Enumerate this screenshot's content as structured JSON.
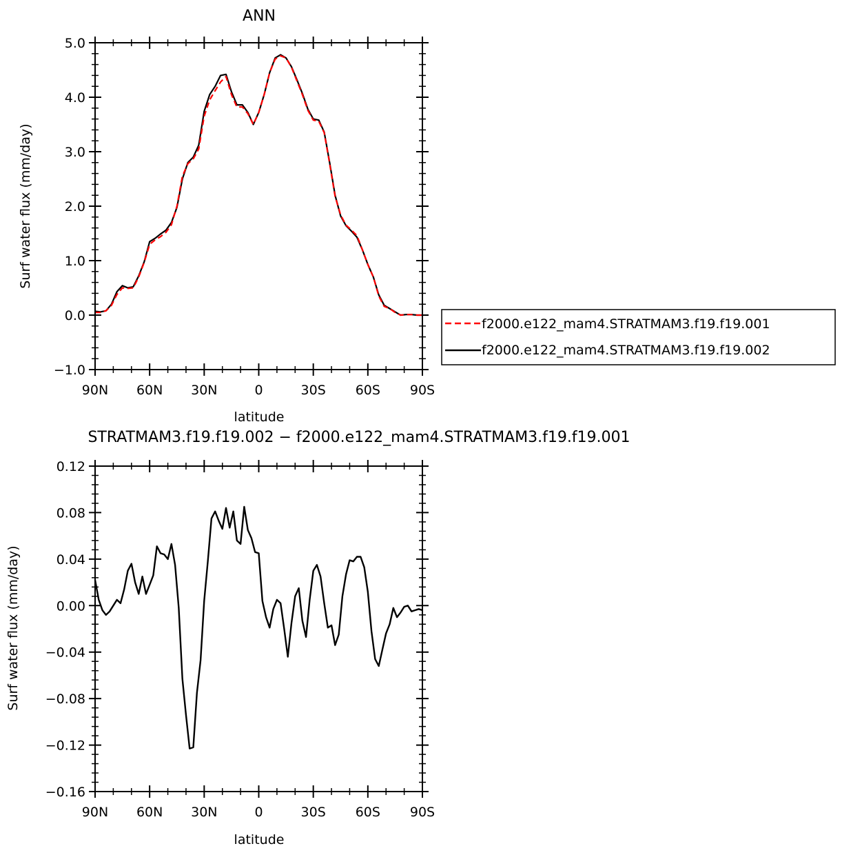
{
  "chart_data": [
    {
      "type": "line",
      "title": "ANN",
      "xlabel": "latitude",
      "ylabel": "Surf water flux (mm/day)",
      "xlim": [
        90,
        -90
      ],
      "ylim": [
        -1.0,
        5.0
      ],
      "xticks": [
        {
          "value": 90,
          "label": "90N"
        },
        {
          "value": 60,
          "label": "60N"
        },
        {
          "value": 30,
          "label": "30N"
        },
        {
          "value": 0,
          "label": "0"
        },
        {
          "value": -30,
          "label": "30S"
        },
        {
          "value": -60,
          "label": "60S"
        },
        {
          "value": -90,
          "label": "90S"
        }
      ],
      "yticks": [
        {
          "value": -1.0,
          "label": "−1.0"
        },
        {
          "value": 0.0,
          "label": "0.0"
        },
        {
          "value": 1.0,
          "label": "1.0"
        },
        {
          "value": 2.0,
          "label": "2.0"
        },
        {
          "value": 3.0,
          "label": "3.0"
        },
        {
          "value": 4.0,
          "label": "4.0"
        },
        {
          "value": 5.0,
          "label": "5.0"
        }
      ],
      "yminor_step": 0.2,
      "grid": false,
      "legend_position": "right",
      "series": [
        {
          "name": "f2000.e122_mam4.STRATMAM3.f19.f19.001",
          "color": "#ff0000",
          "dash": "dashed",
          "x": [
            90,
            87,
            84,
            81,
            78,
            75,
            72,
            69,
            66,
            63,
            60,
            57,
            54,
            51,
            48,
            45,
            42,
            39,
            36,
            33,
            30,
            27,
            24,
            21,
            18,
            15,
            12,
            9,
            6,
            3,
            0,
            -3,
            -6,
            -9,
            -12,
            -15,
            -18,
            -21,
            -24,
            -27,
            -30,
            -33,
            -36,
            -39,
            -42,
            -45,
            -48,
            -51,
            -54,
            -57,
            -60,
            -63,
            -66,
            -69,
            -72,
            -75,
            -78,
            -81,
            -84,
            -87,
            -90
          ],
          "y": [
            0.05,
            0.05,
            0.08,
            0.18,
            0.38,
            0.5,
            0.49,
            0.5,
            0.7,
            0.97,
            1.3,
            1.38,
            1.44,
            1.52,
            1.66,
            2.0,
            2.55,
            2.78,
            2.87,
            3.05,
            3.65,
            3.95,
            4.12,
            4.28,
            4.38,
            4.05,
            3.82,
            3.82,
            3.7,
            3.5,
            3.72,
            4.05,
            4.45,
            4.7,
            4.76,
            4.72,
            4.55,
            4.3,
            4.05,
            3.76,
            3.58,
            3.56,
            3.35,
            2.78,
            2.18,
            1.84,
            1.65,
            1.56,
            1.46,
            1.2,
            0.93,
            0.7,
            0.35,
            0.16,
            0.12,
            0.05,
            0.0,
            0.01,
            0.01,
            0.0,
            0.0
          ]
        },
        {
          "name": "f2000.e122_mam4.STRATMAM3.f19.f19.002",
          "color": "#000000",
          "dash": "solid",
          "x": [
            90,
            87,
            84,
            81,
            78,
            75,
            72,
            69,
            66,
            63,
            60,
            57,
            54,
            51,
            48,
            45,
            42,
            39,
            36,
            33,
            30,
            27,
            24,
            21,
            18,
            15,
            12,
            9,
            6,
            3,
            0,
            -3,
            -6,
            -9,
            -12,
            -15,
            -18,
            -21,
            -24,
            -27,
            -30,
            -33,
            -36,
            -39,
            -42,
            -45,
            -48,
            -51,
            -54,
            -57,
            -60,
            -63,
            -66,
            -69,
            -72,
            -75,
            -78,
            -81,
            -84,
            -87,
            -90
          ],
          "y": [
            0.07,
            0.06,
            0.08,
            0.2,
            0.43,
            0.54,
            0.5,
            0.52,
            0.72,
            0.98,
            1.35,
            1.41,
            1.49,
            1.56,
            1.7,
            1.98,
            2.5,
            2.8,
            2.9,
            3.12,
            3.74,
            4.05,
            4.2,
            4.4,
            4.42,
            4.1,
            3.86,
            3.86,
            3.72,
            3.5,
            3.72,
            4.05,
            4.45,
            4.72,
            4.78,
            4.72,
            4.56,
            4.32,
            4.07,
            3.78,
            3.6,
            3.58,
            3.36,
            2.8,
            2.2,
            1.82,
            1.64,
            1.54,
            1.43,
            1.2,
            0.93,
            0.7,
            0.37,
            0.18,
            0.12,
            0.06,
            0.0,
            0.01,
            0.01,
            0.0,
            0.0
          ]
        }
      ]
    },
    {
      "type": "line",
      "title": "STRATMAM3.f19.f19.002 − f2000.e122_mam4.STRATMAM3.f19.f19.001",
      "xlabel": "latitude",
      "ylabel": "Surf water flux (mm/day)",
      "xlim": [
        90,
        -90
      ],
      "ylim": [
        -0.16,
        0.12
      ],
      "xticks": [
        {
          "value": 90,
          "label": "90N"
        },
        {
          "value": 60,
          "label": "60N"
        },
        {
          "value": 30,
          "label": "30N"
        },
        {
          "value": 0,
          "label": "0"
        },
        {
          "value": -30,
          "label": "30S"
        },
        {
          "value": -60,
          "label": "60S"
        },
        {
          "value": -90,
          "label": "90S"
        }
      ],
      "yticks": [
        {
          "value": -0.16,
          "label": "−0.16"
        },
        {
          "value": -0.12,
          "label": "−0.12"
        },
        {
          "value": -0.08,
          "label": "−0.08"
        },
        {
          "value": -0.04,
          "label": "−0.04"
        },
        {
          "value": 0.0,
          "label": "0.00"
        },
        {
          "value": 0.04,
          "label": "0.04"
        },
        {
          "value": 0.08,
          "label": "0.08"
        },
        {
          "value": 0.12,
          "label": "0.12"
        }
      ],
      "yminor_step": 0.008,
      "grid": false,
      "series": [
        {
          "color": "#000000",
          "dash": "solid",
          "x": [
            90,
            88,
            86,
            84,
            82,
            80,
            78,
            76,
            74,
            72,
            70,
            68,
            66,
            64,
            62,
            60,
            58,
            56,
            54,
            52,
            50,
            48,
            46,
            44,
            42,
            40,
            38,
            36,
            34,
            32,
            30,
            28,
            26,
            24,
            22,
            20,
            18,
            16,
            14,
            12,
            10,
            8,
            6,
            4,
            2,
            0,
            -2,
            -4,
            -6,
            -8,
            -10,
            -12,
            -14,
            -16,
            -18,
            -20,
            -22,
            -24,
            -26,
            -28,
            -30,
            -32,
            -34,
            -36,
            -38,
            -40,
            -42,
            -44,
            -46,
            -48,
            -50,
            -52,
            -54,
            -56,
            -58,
            -60,
            -62,
            -64,
            -66,
            -68,
            -70,
            -72,
            -74,
            -76,
            -78,
            -80,
            -82,
            -84,
            -86,
            -88,
            -90
          ],
          "y": [
            0.022,
            0.005,
            -0.004,
            -0.008,
            -0.005,
            0.0,
            0.005,
            0.002,
            0.014,
            0.03,
            0.036,
            0.02,
            0.01,
            0.025,
            0.01,
            0.018,
            0.026,
            0.051,
            0.045,
            0.044,
            0.04,
            0.053,
            0.035,
            -0.002,
            -0.063,
            -0.094,
            -0.123,
            -0.122,
            -0.075,
            -0.047,
            0.004,
            0.038,
            0.075,
            0.081,
            0.073,
            0.066,
            0.084,
            0.067,
            0.081,
            0.056,
            0.053,
            0.085,
            0.065,
            0.058,
            0.046,
            0.045,
            0.004,
            -0.01,
            -0.019,
            -0.003,
            0.005,
            0.002,
            -0.02,
            -0.044,
            -0.015,
            0.008,
            0.015,
            -0.013,
            -0.027,
            0.005,
            0.03,
            0.035,
            0.025,
            0.002,
            -0.019,
            -0.017,
            -0.034,
            -0.025,
            0.008,
            0.027,
            0.039,
            0.038,
            0.042,
            0.042,
            0.033,
            0.012,
            -0.022,
            -0.046,
            -0.052,
            -0.038,
            -0.024,
            -0.016,
            -0.002,
            -0.01,
            -0.006,
            -0.001,
            0.0,
            -0.005,
            -0.004,
            -0.003,
            -0.004
          ]
        }
      ]
    }
  ]
}
